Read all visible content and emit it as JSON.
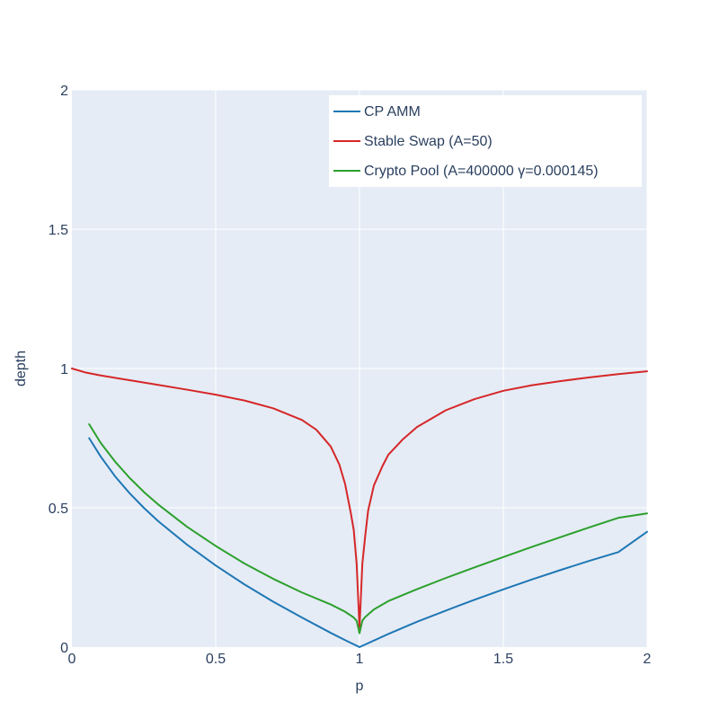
{
  "chart_data": {
    "type": "line",
    "title": "",
    "xlabel": "p",
    "ylabel": "depth",
    "xlim": [
      0,
      2
    ],
    "ylim": [
      0,
      2
    ],
    "grid": true,
    "legend_position": "top-right",
    "plot_background": "#e5ecf6",
    "grid_color": "#ffffff",
    "text_color": "#2a3f5f",
    "x_ticks": [
      {
        "value": 0,
        "label": "0"
      },
      {
        "value": 0.5,
        "label": "0.5"
      },
      {
        "value": 1,
        "label": "1"
      },
      {
        "value": 1.5,
        "label": "1.5"
      },
      {
        "value": 2,
        "label": "2"
      }
    ],
    "y_ticks": [
      {
        "value": 0,
        "label": "0"
      },
      {
        "value": 0.5,
        "label": "0.5"
      },
      {
        "value": 1,
        "label": "1"
      },
      {
        "value": 1.5,
        "label": "1.5"
      },
      {
        "value": 2,
        "label": "2"
      }
    ],
    "series": [
      {
        "name": "CP AMM",
        "color": "#1f77b4",
        "x": [
          0.06,
          0.1,
          0.15,
          0.2,
          0.25,
          0.3,
          0.4,
          0.5,
          0.6,
          0.7,
          0.8,
          0.9,
          0.95,
          1.0,
          1.1,
          1.2,
          1.3,
          1.4,
          1.5,
          1.6,
          1.7,
          1.8,
          1.9,
          2.0
        ],
        "y": [
          0.75,
          0.684,
          0.613,
          0.553,
          0.5,
          0.452,
          0.368,
          0.293,
          0.225,
          0.163,
          0.106,
          0.051,
          0.025,
          0.0,
          0.047,
          0.091,
          0.131,
          0.17,
          0.207,
          0.243,
          0.277,
          0.31,
          0.341,
          0.414
        ]
      },
      {
        "name": "Stable Swap (A=50)",
        "color": "#d62728",
        "x": [
          0.0,
          0.05,
          0.1,
          0.2,
          0.3,
          0.4,
          0.5,
          0.6,
          0.7,
          0.8,
          0.85,
          0.9,
          0.93,
          0.95,
          0.97,
          0.98,
          0.99,
          1.0,
          1.01,
          1.02,
          1.03,
          1.05,
          1.08,
          1.1,
          1.15,
          1.2,
          1.3,
          1.4,
          1.5,
          1.6,
          1.7,
          1.8,
          1.9,
          2.0
        ],
        "y": [
          1.0,
          0.985,
          0.975,
          0.958,
          0.941,
          0.924,
          0.906,
          0.885,
          0.857,
          0.815,
          0.78,
          0.72,
          0.655,
          0.585,
          0.48,
          0.42,
          0.3,
          0.07,
          0.3,
          0.4,
          0.49,
          0.58,
          0.65,
          0.69,
          0.745,
          0.79,
          0.85,
          0.89,
          0.92,
          0.94,
          0.955,
          0.968,
          0.98,
          0.99
        ]
      },
      {
        "name": "Crypto Pool (A=400000 γ=0.000145)",
        "color": "#2ca02c",
        "x": [
          0.06,
          0.1,
          0.15,
          0.2,
          0.25,
          0.3,
          0.4,
          0.5,
          0.6,
          0.7,
          0.8,
          0.9,
          0.95,
          0.98,
          0.99,
          1.0,
          1.01,
          1.02,
          1.05,
          1.1,
          1.2,
          1.3,
          1.4,
          1.5,
          1.6,
          1.7,
          1.8,
          1.9,
          2.0
        ],
        "y": [
          0.8,
          0.733,
          0.666,
          0.608,
          0.557,
          0.512,
          0.432,
          0.363,
          0.3,
          0.245,
          0.196,
          0.153,
          0.127,
          0.106,
          0.095,
          0.05,
          0.095,
          0.108,
          0.135,
          0.165,
          0.208,
          0.248,
          0.286,
          0.323,
          0.36,
          0.395,
          0.43,
          0.464,
          0.48
        ]
      }
    ]
  }
}
